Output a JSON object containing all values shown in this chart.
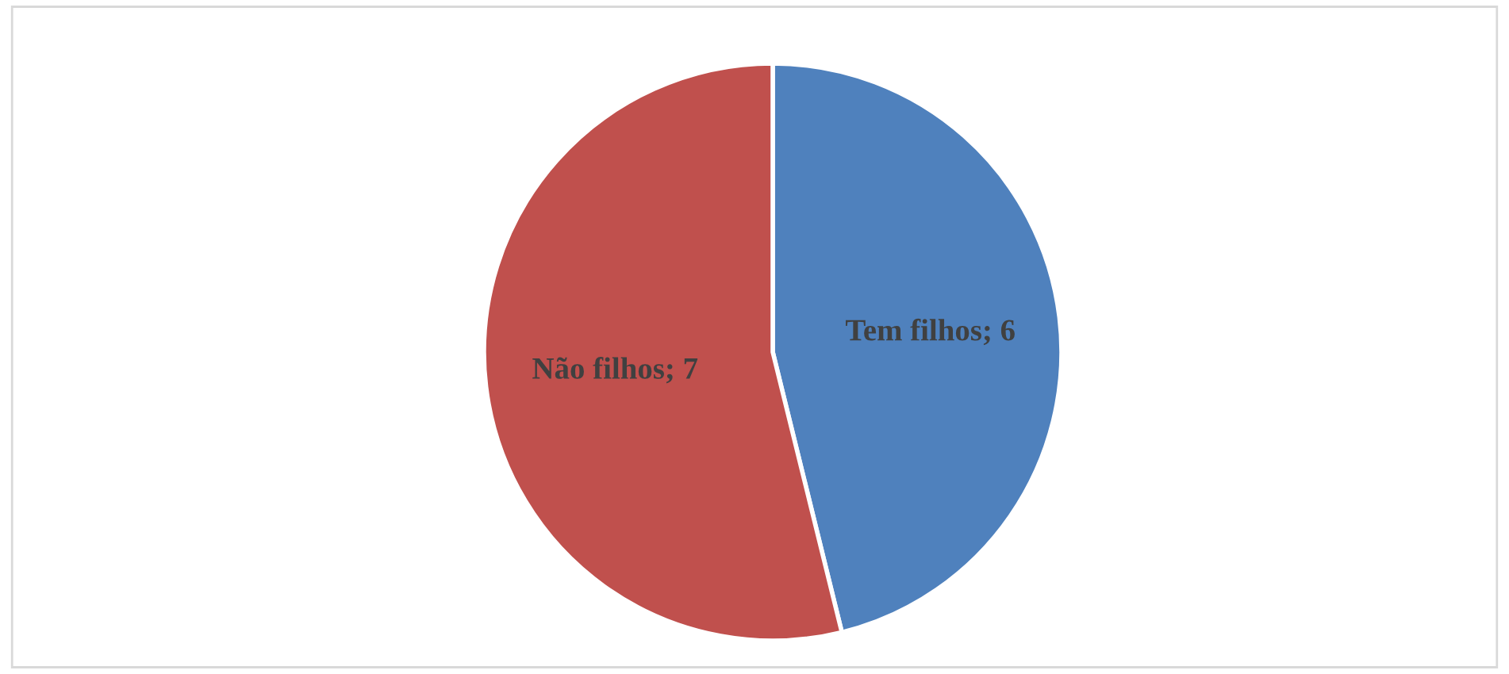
{
  "chart_data": {
    "type": "pie",
    "categories": [
      null,
      null
    ],
    "values": [
      6,
      7
    ],
    "value_labels": [
      "Tem filhos; 6",
      "Não filhos; 7"
    ],
    "colors": [
      "#4f81bd",
      "#c0504d"
    ]
  }
}
